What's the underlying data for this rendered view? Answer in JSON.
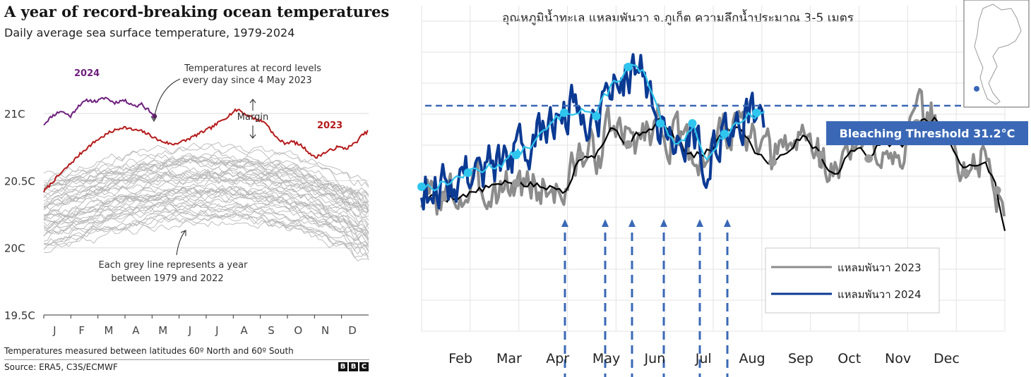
{
  "left_chart": {
    "title": "A year of record-breaking ocean temperatures",
    "subtitle": "Daily average sea surface temperature, 1979-2024",
    "footnote": "Temperatures measured between latitudes 60º North and 60º South",
    "source": "Source: ERA5, C3S/ECMWF",
    "logo_letters": [
      "B",
      "B",
      "C"
    ],
    "annotations": {
      "record_line1": "Temperatures at record levels",
      "record_line2": "every day since 4 May 2023",
      "margin": "Margin",
      "grey_line1": "Each grey line represents a year",
      "grey_line2": "between 1979 and 2022"
    },
    "colors": {
      "y2024": "#6e1f7d",
      "y2023": "#b41a1a",
      "grey": "#b8b8b8",
      "grid": "#dcdcdc"
    },
    "chart_data": {
      "type": "line",
      "ylim": [
        19.5,
        21.2
      ],
      "yticks": [
        {
          "value": 19.5,
          "label": "19.5C"
        },
        {
          "value": 20.0,
          "label": "20C"
        },
        {
          "value": 20.5,
          "label": "20.5C"
        },
        {
          "value": 21.0,
          "label": "21C"
        }
      ],
      "xticks": [
        "J",
        "F",
        "M",
        "A",
        "M",
        "J",
        "J",
        "A",
        "S",
        "O",
        "N",
        "D"
      ],
      "grid": true,
      "series": [
        {
          "name": "2024",
          "x": [
            1,
            10,
            20,
            31,
            40,
            50,
            60,
            70,
            80,
            90,
            100,
            105,
            110,
            115,
            120,
            125
          ],
          "values": [
            20.92,
            20.98,
            21.02,
            20.98,
            21.06,
            21.1,
            21.09,
            21.12,
            21.08,
            21.1,
            21.07,
            21.05,
            21.08,
            21.04,
            21.02,
            20.98
          ]
        },
        {
          "name": "2023",
          "x": [
            1,
            15,
            30,
            45,
            60,
            75,
            90,
            100,
            110,
            120,
            130,
            145,
            160,
            175,
            190,
            205,
            215,
            220,
            225,
            235,
            250,
            260,
            270,
            280,
            290,
            300,
            305,
            310,
            320,
            330,
            340,
            350,
            358,
            365
          ],
          "values": [
            20.42,
            20.52,
            20.62,
            20.72,
            20.8,
            20.86,
            20.9,
            20.88,
            20.87,
            20.84,
            20.8,
            20.77,
            20.8,
            20.85,
            20.9,
            20.97,
            21.02,
            21.03,
            21.0,
            20.97,
            20.93,
            20.83,
            20.78,
            20.79,
            20.76,
            20.7,
            20.67,
            20.69,
            20.72,
            20.75,
            20.74,
            20.78,
            20.84,
            20.87
          ]
        }
      ],
      "grey_years": "1979-2022"
    }
  },
  "right_chart": {
    "title": "อุณหภูมิน้ำทะเล แหลมพันวา จ.ภูเก็ต ความลึกน้ำประมาณ 3-5 เมตร",
    "threshold_label": "Bleaching Threshold 31.2°C",
    "colors": {
      "y2023": "#8c8c8c",
      "y2023_mean": "#000000",
      "y2024": "#0b3a93",
      "y2024_mean": "#2ec6ee",
      "threshold": "#3a68b6",
      "grid": "#e3e3e3"
    },
    "chart_data": {
      "type": "line",
      "xticks": [
        "Feb",
        "Mar",
        "Apr",
        "May",
        "Jun",
        "Jul",
        "Aug",
        "Sep",
        "Oct",
        "Nov",
        "Dec"
      ],
      "threshold": 31.2,
      "legend": [
        "แหลมพันวา 2023",
        "แหลมพันวา 2024"
      ],
      "legend_position": "bottom-right",
      "series": [
        {
          "name": "แหลมพันวา 2023",
          "x": [
            1,
            15,
            30,
            45,
            60,
            75,
            90,
            100,
            110,
            120,
            130,
            140,
            150,
            160,
            170,
            180,
            190,
            200,
            210,
            220,
            230,
            240,
            250,
            260,
            270,
            280,
            290,
            300,
            310,
            320,
            330,
            340,
            350,
            355,
            360,
            365
          ],
          "values": [
            29.9,
            29.9,
            29.95,
            30.05,
            30.1,
            30.05,
            30.0,
            30.5,
            30.55,
            30.9,
            30.65,
            30.85,
            31.0,
            30.7,
            30.45,
            30.55,
            30.85,
            30.9,
            30.55,
            30.4,
            30.6,
            30.8,
            30.5,
            30.2,
            30.65,
            30.45,
            30.75,
            30.6,
            30.95,
            31.05,
            30.7,
            30.25,
            30.45,
            30.3,
            30.0,
            29.4
          ]
        },
        {
          "name": "แหลมพันวา 2024",
          "x": [
            1,
            15,
            30,
            45,
            60,
            75,
            90,
            100,
            110,
            120,
            130,
            140,
            150,
            160,
            170,
            180,
            190,
            200,
            210,
            215
          ],
          "values": [
            30.05,
            30.1,
            30.25,
            30.35,
            30.5,
            30.75,
            31.1,
            31.2,
            31.05,
            31.5,
            31.75,
            31.65,
            30.95,
            30.55,
            30.95,
            30.45,
            30.8,
            31.0,
            31.1,
            31.2
          ]
        }
      ]
    }
  }
}
